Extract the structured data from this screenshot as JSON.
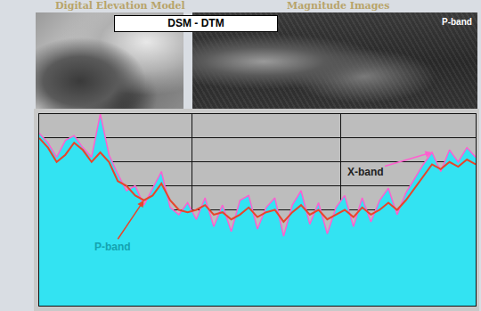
{
  "panels": {
    "left_title": "Digital Elevation Model",
    "right_title": "Magnitude Images",
    "overlay": "DSM - DTM",
    "right_label": "P-band"
  },
  "chart_data": {
    "type": "line",
    "x": [
      0,
      2,
      4,
      6,
      8,
      10,
      12,
      14,
      16,
      18,
      20,
      22,
      24,
      26,
      28,
      30,
      32,
      34,
      36,
      38,
      40,
      42,
      44,
      46,
      48,
      50,
      52,
      54,
      56,
      58,
      60,
      62,
      64,
      66,
      68,
      70,
      72,
      74,
      76,
      78,
      80,
      82,
      84,
      86,
      88,
      90,
      92,
      94,
      96,
      98,
      100
    ],
    "series": [
      {
        "name": "X-band",
        "color": "#ff5fd0",
        "values": [
          7.2,
          6.8,
          6.2,
          6.9,
          7.1,
          6.6,
          6.2,
          8.0,
          6.3,
          5.5,
          4.8,
          5.0,
          4.2,
          4.9,
          5.6,
          4.1,
          3.8,
          4.3,
          3.6,
          4.5,
          3.3,
          4.2,
          3.1,
          4.4,
          4.6,
          3.2,
          4.1,
          4.5,
          2.9,
          4.2,
          4.8,
          3.4,
          4.3,
          3.0,
          4.1,
          4.6,
          3.3,
          4.5,
          3.5,
          4.4,
          4.9,
          3.8,
          4.7,
          5.3,
          5.9,
          6.4,
          5.6,
          6.5,
          6.0,
          6.6,
          6.2
        ]
      },
      {
        "name": "P-band",
        "color": "#e8452a",
        "values": [
          7.0,
          6.6,
          6.0,
          6.3,
          6.8,
          6.5,
          6.0,
          6.4,
          6.0,
          5.2,
          5.0,
          4.6,
          4.4,
          4.6,
          5.1,
          4.4,
          4.0,
          3.9,
          4.0,
          4.2,
          3.8,
          3.9,
          3.6,
          3.8,
          4.1,
          3.7,
          3.9,
          4.0,
          3.5,
          3.9,
          4.2,
          3.8,
          4.0,
          3.6,
          3.8,
          4.0,
          3.7,
          4.1,
          3.8,
          4.0,
          4.3,
          4.0,
          4.4,
          4.9,
          5.4,
          5.9,
          5.7,
          6.0,
          5.8,
          6.1,
          5.9
        ]
      }
    ],
    "xlim": [
      0,
      100
    ],
    "xticks": [
      0,
      35,
      69,
      100
    ],
    "ylim": [
      0,
      8
    ],
    "yticks": [
      0,
      1,
      2,
      3,
      4,
      5,
      6,
      7,
      8
    ],
    "grid": true,
    "tick_labels": false
  }
}
